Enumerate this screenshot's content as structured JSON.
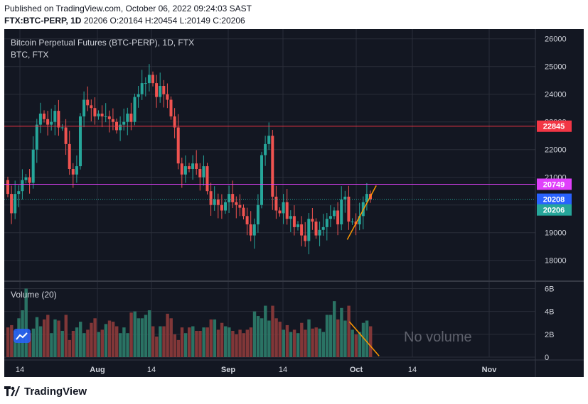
{
  "header": {
    "published": "Published on TradingView.com, October 06, 2022 09:24:03 SAST",
    "symbol": "FTX:BTC-PERP, 1D",
    "ohlc": "20206 O:20164 H:20454 L:20149 C:20206"
  },
  "chart_data": {
    "type": "candlestick",
    "title": "Bitcoin Perpetual Futures (BTC-PERP), 1D, FTX",
    "subtitle": "BTC, FTX",
    "interval": "1D",
    "y_axis": {
      "ticks": [
        "26000",
        "25000",
        "24000",
        "23000",
        "22000",
        "21000",
        "20000",
        "19000",
        "18000"
      ],
      "range": [
        17300,
        26300
      ],
      "position": "right"
    },
    "x_axis": {
      "ticks": [
        "14",
        "Aug",
        "14",
        "Sep",
        "14",
        "Oct",
        "14",
        "Nov"
      ]
    },
    "grid": true,
    "theme_colors": {
      "background": "#131722",
      "grid": "#2a2e39",
      "up": "#26a69a",
      "down": "#ef5350"
    },
    "price_lines": [
      {
        "label": "22845",
        "value": 22845,
        "color": "#f23645"
      },
      {
        "label": "20749",
        "value": 20749,
        "color": "#e040fb"
      },
      {
        "label": "20208",
        "value": 20208,
        "color": "#2962ff",
        "dotted": true
      },
      {
        "label": "20206",
        "value": 20206,
        "color": "#26a69a"
      }
    ],
    "candle_closes": [
      20400,
      19700,
      20400,
      20500,
      20900,
      21000,
      20800,
      22000,
      22900,
      23300,
      23100,
      22900,
      23000,
      23400,
      22800,
      22800,
      22200,
      21300,
      21100,
      21400,
      23200,
      23800,
      23600,
      23500,
      23200,
      23300,
      23200,
      23200,
      23100,
      23000,
      22700,
      22900,
      23000,
      23300,
      23000,
      23900,
      24000,
      24400,
      24400,
      24700,
      24400,
      23900,
      24300,
      24000,
      23800,
      23200,
      22800,
      21500,
      21100,
      21400,
      21300,
      21500,
      21300,
      21000,
      21400,
      20500,
      20000,
      20200,
      20000,
      19800,
      20100,
      20400,
      20100,
      20000,
      19900,
      19600,
      19300,
      18900,
      19300,
      20000,
      21800,
      22200,
      22500,
      20300,
      19800,
      19700,
      20100,
      19500,
      19600,
      19200,
      19300,
      18900,
      18700,
      19500,
      19400,
      18900,
      19100,
      19200,
      19500,
      19600,
      19800,
      19300,
      20200,
      20300,
      19400,
      19400,
      19300,
      19600,
      20100,
      20400,
      20200
    ],
    "volume_panel": {
      "title": "Volume (20)",
      "ticks": [
        "6B",
        "4B",
        "2B",
        "0"
      ],
      "note": "No volume",
      "range": [
        0,
        6.4
      ],
      "unit": "B"
    },
    "volume": [
      2.6,
      2.8,
      2.3,
      3.4,
      4.1,
      6.0,
      2.1,
      2.5,
      3.5,
      2.7,
      3.3,
      3.7,
      2.1,
      3.3,
      3.2,
      2.3,
      3.7,
      1.5,
      2.3,
      2.6,
      3.1,
      2.1,
      2.4,
      3.0,
      3.4,
      2.2,
      2.4,
      2.9,
      3.2,
      3.1,
      2.7,
      2.1,
      2.6,
      2.1,
      3.9,
      4.0,
      3.4,
      3.4,
      3.7,
      4.1,
      2.7,
      1.8,
      2.7,
      2.7,
      3.8,
      3.4,
      2.0,
      1.5,
      2.6,
      2.1,
      2.6,
      2.7,
      2.3,
      2.3,
      2.6,
      2.6,
      3.3,
      3.3,
      2.4,
      3.0,
      2.7,
      2.6,
      2.3,
      2.0,
      2.4,
      2.1,
      2.4,
      2.6,
      4.0,
      3.6,
      3.4,
      4.5,
      3.2,
      4.5,
      3.4,
      3.1,
      2.4,
      2.8,
      2.2,
      2.4,
      2.1,
      3.0,
      2.4,
      3.3,
      2.5,
      2.6,
      2.5,
      2.2,
      3.7,
      3.7,
      4.9,
      3.3,
      4.3,
      3.2,
      4.5,
      2.4,
      2.0,
      2.2,
      3.0,
      3.2,
      2.7
    ]
  }
}
